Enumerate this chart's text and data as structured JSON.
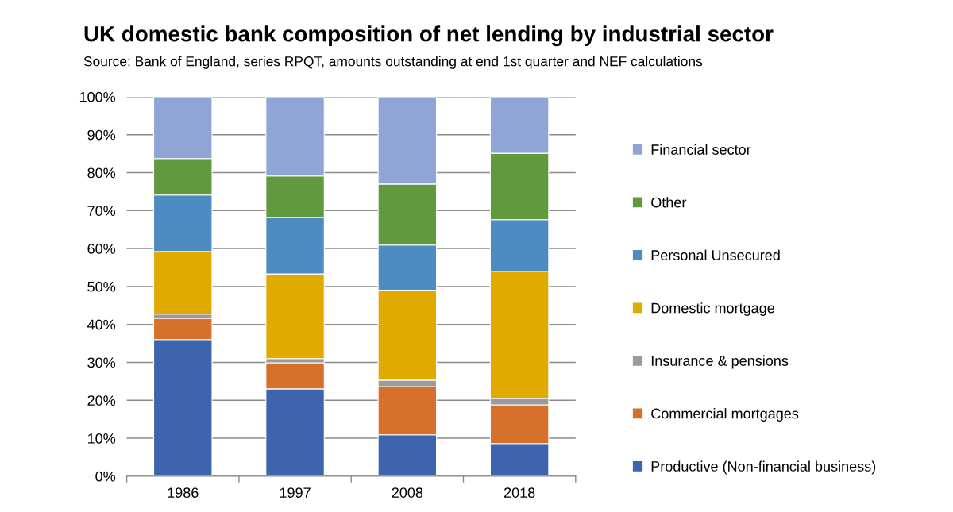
{
  "chart_data": {
    "type": "bar",
    "stacked": true,
    "title": "UK domestic bank composition of net lending by industrial sector",
    "subtitle": "Source: Bank of England, series RPQT, amounts outstanding at end 1st quarter and NEF calculations",
    "categories": [
      "1986",
      "1997",
      "2008",
      "2018"
    ],
    "series": [
      {
        "name": "Productive (Non-financial business)",
        "color": "#3f64ae",
        "values": [
          36.0,
          23.0,
          10.9,
          8.6
        ]
      },
      {
        "name": "Commercial mortgages",
        "color": "#d6702b",
        "values": [
          5.6,
          6.9,
          12.7,
          10.2
        ]
      },
      {
        "name": "Insurance & pensions",
        "color": "#9b9b9b",
        "values": [
          1.1,
          1.1,
          1.7,
          1.7
        ]
      },
      {
        "name": "Domestic mortgage",
        "color": "#e0aa00",
        "values": [
          16.5,
          22.3,
          23.7,
          33.5
        ]
      },
      {
        "name": "Personal Unsecured",
        "color": "#4e8bc0",
        "values": [
          14.9,
          14.9,
          11.9,
          13.6
        ]
      },
      {
        "name": "Other",
        "color": "#62993e",
        "values": [
          9.6,
          10.9,
          16.1,
          17.5
        ]
      },
      {
        "name": "Financial sector",
        "color": "#8fa5d6",
        "values": [
          16.3,
          20.9,
          23.0,
          14.9
        ]
      }
    ],
    "ylim": [
      0,
      100
    ],
    "yticks": [
      {
        "value": 0,
        "label": "0%"
      },
      {
        "value": 10,
        "label": "10%"
      },
      {
        "value": 20,
        "label": "20%"
      },
      {
        "value": 30,
        "label": "30%"
      },
      {
        "value": 40,
        "label": "40%"
      },
      {
        "value": 50,
        "label": "50%"
      },
      {
        "value": 60,
        "label": "60%"
      },
      {
        "value": 70,
        "label": "70%"
      },
      {
        "value": 80,
        "label": "80%"
      },
      {
        "value": 90,
        "label": "90%"
      },
      {
        "value": 100,
        "label": "100%"
      }
    ],
    "grid": "y",
    "legend": "right"
  }
}
